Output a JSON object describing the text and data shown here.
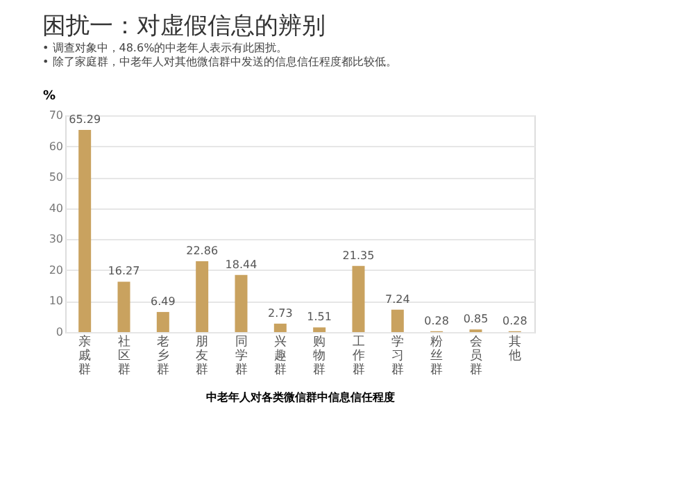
{
  "chart_data": {
    "type": "bar",
    "title": "困扰一：对虚假信息的辨别",
    "subtitle": [
      "•  调查对象中，48.6%的中老年人表示有此困扰。",
      "•  除了家庭群，中老年人对其他微信群中发送的信息信任程度都比较低。"
    ],
    "ylabel": "%",
    "xlabel": "中老年人对各类微信群中信息信任程度",
    "categories": [
      "亲戚群",
      "社区群",
      "老乡群",
      "朋友群",
      "同学群",
      "兴趣群",
      "购物群",
      "工作群",
      "学习群",
      "粉丝群",
      "会员群",
      "其他"
    ],
    "values": [
      65.29,
      16.27,
      6.49,
      22.86,
      18.44,
      2.73,
      1.51,
      21.35,
      7.24,
      0.28,
      0.85,
      0.28
    ],
    "color": "#c9a25f",
    "data_labels": true,
    "ylim": [
      0,
      70
    ],
    "yticks": [
      0,
      10,
      20,
      30,
      40,
      50,
      60,
      70
    ],
    "grid": "y"
  }
}
